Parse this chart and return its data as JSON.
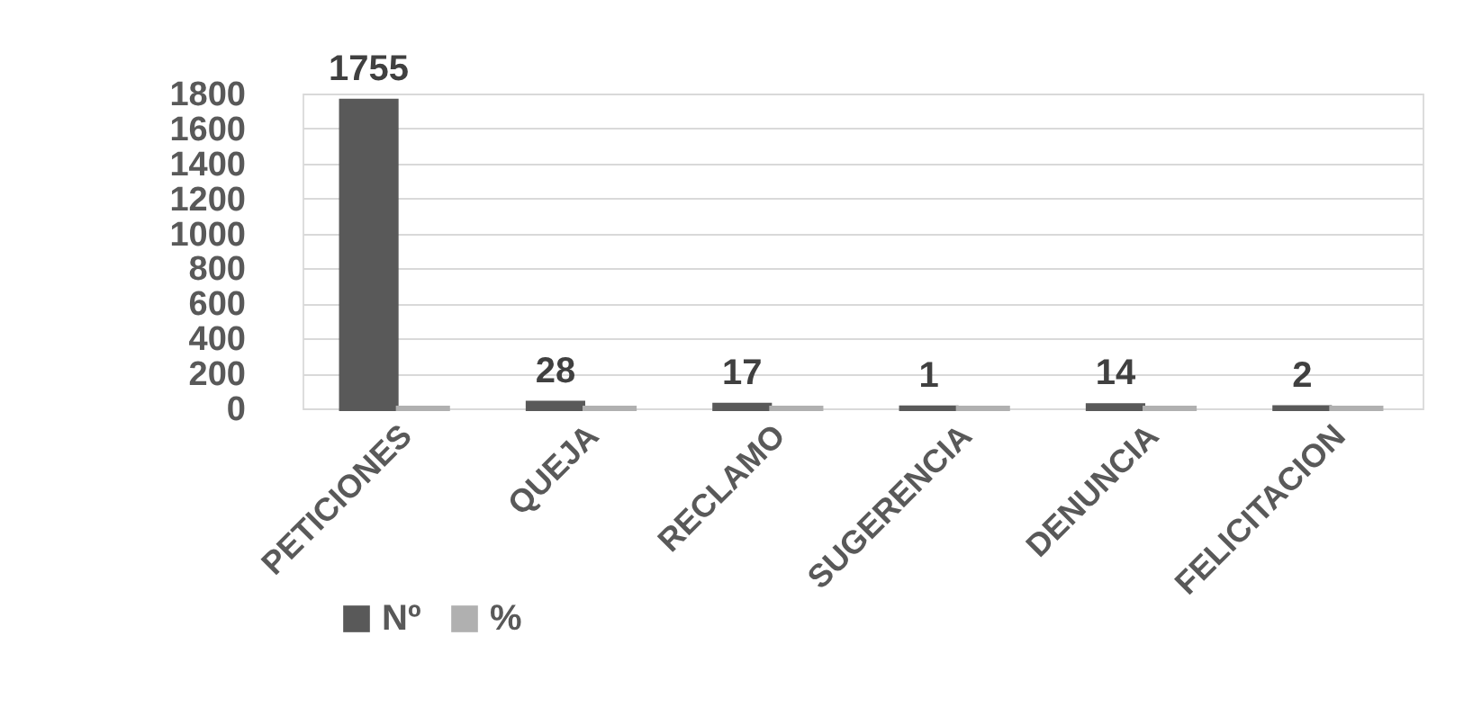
{
  "chart_data": {
    "type": "bar",
    "categories": [
      "PETICIONES",
      "QUEJA",
      "RECLAMO",
      "SUGERENCIA",
      "DENUNCIA",
      "FELICITACION"
    ],
    "series": [
      {
        "name": "Nº",
        "color": "#595959",
        "values": [
          1755,
          28,
          17,
          1,
          14,
          2
        ],
        "value_labels": [
          "1755",
          "28",
          "17",
          "1",
          "14",
          "2"
        ]
      },
      {
        "name": "%",
        "color": "#b0b0b0",
        "values": [
          0,
          0,
          0,
          0,
          0,
          0
        ]
      }
    ],
    "ylim": [
      0,
      1800
    ],
    "yticks": [
      0,
      200,
      400,
      600,
      800,
      1000,
      1200,
      1400,
      1600,
      1800
    ],
    "grid": "y",
    "legend": "bottom left"
  }
}
